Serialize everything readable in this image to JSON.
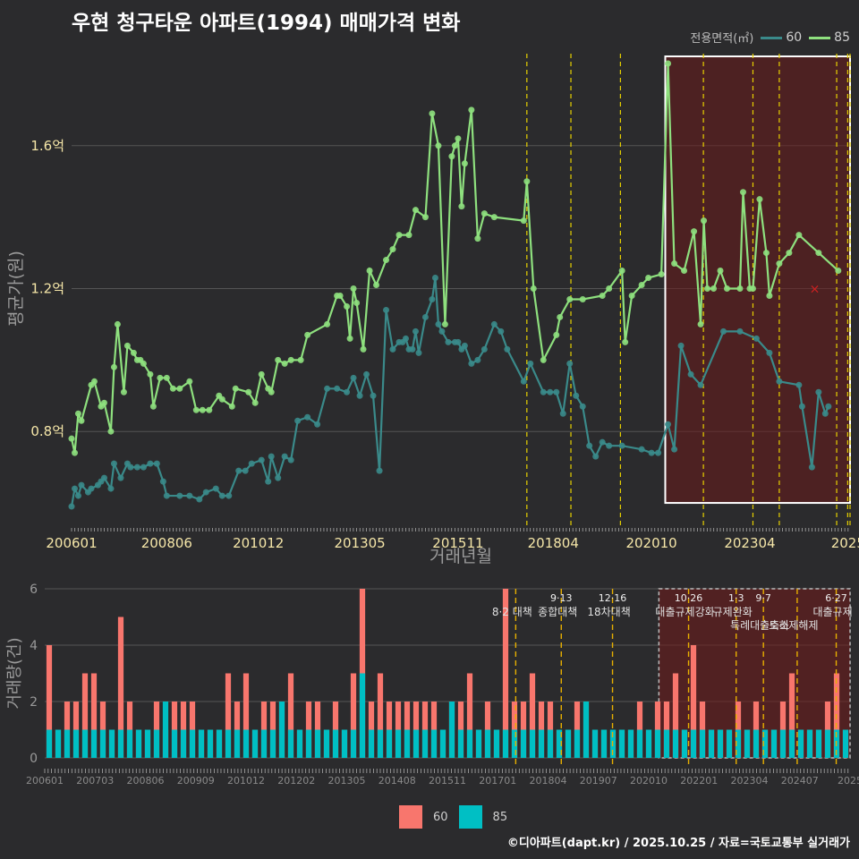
{
  "title": "우현 청구타운 아파트(1994) 매매가격 변화",
  "legend": {
    "title": "전용면적(㎡)",
    "items": [
      {
        "label": "60",
        "color": "#3a8a8a"
      },
      {
        "label": "85",
        "color": "#8ee07e"
      }
    ]
  },
  "bottom_legend": {
    "items": [
      {
        "label": "60",
        "color": "#f8766d"
      },
      {
        "label": "85",
        "color": "#00bfc4"
      }
    ]
  },
  "credit": "©디아파트(dapt.kr) / 2025.10.25 / 자료=국토교통부 실거래가",
  "chart_data": [
    {
      "type": "line",
      "title": "우현 청구타운 아파트(1994) 매매가격 변화",
      "xlabel": "거래년월",
      "ylabel": "평균가(원)",
      "xlim": [
        2006.0,
        2025.8
      ],
      "ylim": [
        0.53,
        1.87
      ],
      "yticks": [
        {
          "v": 0.8,
          "label": "0.8억"
        },
        {
          "v": 1.2,
          "label": "1.2억"
        },
        {
          "v": 1.6,
          "label": "1.6억"
        }
      ],
      "xticks": [
        {
          "v": 2006.0,
          "label": "200601"
        },
        {
          "v": 2008.42,
          "label": "200806"
        },
        {
          "v": 2010.75,
          "label": "201012"
        },
        {
          "v": 2013.33,
          "label": "201305"
        },
        {
          "v": 2015.83,
          "label": "201511"
        },
        {
          "v": 2018.25,
          "label": "201804"
        },
        {
          "v": 2020.75,
          "label": "202010"
        },
        {
          "v": 2023.25,
          "label": "202304"
        },
        {
          "v": 2025.75,
          "label": "2025"
        }
      ],
      "policy_lines": [
        2017.58,
        2018.7,
        2019.96,
        2022.07,
        2023.33,
        2024.0,
        2025.46,
        2025.74,
        2025.8
      ],
      "highlight_range": [
        2021.1,
        2025.8
      ],
      "highlight_y_range": [
        0.6,
        1.85
      ],
      "marker": {
        "x": 2024.9,
        "y": 1.2,
        "label": "×"
      },
      "series": [
        {
          "name": "85",
          "x": [
            2006.0,
            2006.08,
            2006.17,
            2006.25,
            2006.5,
            2006.58,
            2006.75,
            2006.83,
            2007.0,
            2007.08,
            2007.17,
            2007.33,
            2007.42,
            2007.58,
            2007.67,
            2007.75,
            2007.83,
            2008.0,
            2008.08,
            2008.25,
            2008.42,
            2008.58,
            2008.75,
            2009.0,
            2009.17,
            2009.33,
            2009.5,
            2009.75,
            2009.83,
            2010.08,
            2010.17,
            2010.5,
            2010.67,
            2010.83,
            2011.0,
            2011.08,
            2011.25,
            2011.42,
            2011.58,
            2011.83,
            2012.0,
            2012.5,
            2012.75,
            2012.83,
            2013.0,
            2013.08,
            2013.17,
            2013.25,
            2013.42,
            2013.58,
            2013.75,
            2014.0,
            2014.17,
            2014.33,
            2014.58,
            2014.75,
            2015.0,
            2015.17,
            2015.33,
            2015.5,
            2015.67,
            2015.75,
            2015.83,
            2015.92,
            2016.0,
            2016.17,
            2016.33,
            2016.5,
            2016.75,
            2017.5,
            2017.58,
            2017.75,
            2018.0,
            2018.33,
            2018.42,
            2018.67,
            2019.0,
            2019.5,
            2019.67,
            2020.0,
            2020.08,
            2020.25,
            2020.5,
            2020.67,
            2021.0,
            2021.17,
            2021.33,
            2021.58,
            2021.83,
            2022.0,
            2022.08,
            2022.17,
            2022.33,
            2022.5,
            2022.67,
            2023.0,
            2023.08,
            2023.25,
            2023.33,
            2023.5,
            2023.67,
            2023.75,
            2024.0,
            2024.25,
            2024.5,
            2025.0,
            2025.5
          ],
          "y": [
            0.78,
            0.74,
            0.85,
            0.83,
            0.93,
            0.94,
            0.87,
            0.88,
            0.8,
            0.98,
            1.1,
            0.91,
            1.04,
            1.02,
            1.0,
            1.0,
            0.99,
            0.96,
            0.87,
            0.95,
            0.95,
            0.92,
            0.92,
            0.94,
            0.86,
            0.86,
            0.86,
            0.9,
            0.89,
            0.87,
            0.92,
            0.91,
            0.88,
            0.96,
            0.92,
            0.91,
            1.0,
            0.99,
            1.0,
            1.0,
            1.07,
            1.1,
            1.18,
            1.18,
            1.15,
            1.06,
            1.2,
            1.16,
            1.03,
            1.25,
            1.21,
            1.28,
            1.31,
            1.35,
            1.35,
            1.42,
            1.4,
            1.69,
            1.6,
            1.1,
            1.57,
            1.6,
            1.62,
            1.43,
            1.55,
            1.7,
            1.34,
            1.41,
            1.4,
            1.39,
            1.5,
            1.2,
            1.0,
            1.07,
            1.12,
            1.17,
            1.17,
            1.18,
            1.2,
            1.25,
            1.05,
            1.18,
            1.21,
            1.23,
            1.24,
            1.83,
            1.27,
            1.25,
            1.36,
            1.1,
            1.39,
            1.2,
            1.2,
            1.25,
            1.2,
            1.2,
            1.47,
            1.2,
            1.2,
            1.45,
            1.3,
            1.18,
            1.27,
            1.3,
            1.35,
            1.3,
            1.25
          ]
        },
        {
          "name": "60",
          "x": [
            2006.0,
            2006.08,
            2006.17,
            2006.25,
            2006.42,
            2006.5,
            2006.67,
            2006.75,
            2006.83,
            2007.0,
            2007.08,
            2007.25,
            2007.42,
            2007.5,
            2007.67,
            2007.83,
            2008.0,
            2008.17,
            2008.33,
            2008.42,
            2008.75,
            2009.0,
            2009.25,
            2009.42,
            2009.67,
            2009.83,
            2010.0,
            2010.25,
            2010.42,
            2010.58,
            2010.83,
            2011.0,
            2011.08,
            2011.25,
            2011.42,
            2011.58,
            2011.75,
            2012.0,
            2012.25,
            2012.5,
            2012.75,
            2013.0,
            2013.17,
            2013.33,
            2013.5,
            2013.67,
            2013.83,
            2014.0,
            2014.17,
            2014.33,
            2014.42,
            2014.5,
            2014.58,
            2014.67,
            2014.75,
            2014.83,
            2015.0,
            2015.17,
            2015.25,
            2015.33,
            2015.42,
            2015.58,
            2015.75,
            2015.83,
            2015.92,
            2016.0,
            2016.17,
            2016.33,
            2016.5,
            2016.75,
            2016.92,
            2017.08,
            2017.5,
            2017.67,
            2018.0,
            2018.17,
            2018.33,
            2018.5,
            2018.67,
            2018.83,
            2019.0,
            2019.17,
            2019.33,
            2019.5,
            2019.67,
            2020.0,
            2020.5,
            2020.75,
            2020.92,
            2021.17,
            2021.33,
            2021.5,
            2021.75,
            2022.0,
            2022.58,
            2023.0,
            2023.42,
            2023.75,
            2024.0,
            2024.5,
            2024.58,
            2024.83,
            2025.0,
            2025.17,
            2025.25
          ],
          "y": [
            0.59,
            0.64,
            0.62,
            0.65,
            0.63,
            0.64,
            0.65,
            0.66,
            0.67,
            0.64,
            0.71,
            0.67,
            0.71,
            0.7,
            0.7,
            0.7,
            0.71,
            0.71,
            0.66,
            0.62,
            0.62,
            0.62,
            0.61,
            0.63,
            0.64,
            0.62,
            0.62,
            0.69,
            0.69,
            0.71,
            0.72,
            0.66,
            0.73,
            0.67,
            0.73,
            0.72,
            0.83,
            0.84,
            0.82,
            0.92,
            0.92,
            0.91,
            0.95,
            0.9,
            0.96,
            0.9,
            0.69,
            1.14,
            1.03,
            1.05,
            1.05,
            1.06,
            1.03,
            1.03,
            1.08,
            1.02,
            1.12,
            1.17,
            1.23,
            1.1,
            1.08,
            1.05,
            1.05,
            1.05,
            1.03,
            1.04,
            0.99,
            1.0,
            1.03,
            1.1,
            1.08,
            1.03,
            0.94,
            0.99,
            0.91,
            0.91,
            0.91,
            0.85,
            0.99,
            0.9,
            0.87,
            0.76,
            0.73,
            0.77,
            0.76,
            0.76,
            0.75,
            0.74,
            0.74,
            0.82,
            0.75,
            1.04,
            0.96,
            0.93,
            1.08,
            1.08,
            1.06,
            1.02,
            0.94,
            0.93,
            0.87,
            0.7,
            0.91,
            0.85,
            0.87
          ]
        }
      ]
    },
    {
      "type": "bar",
      "xlabel": "",
      "ylabel": "거래량(건)",
      "ylim": [
        0,
        6
      ],
      "yticks": [
        0,
        2,
        4,
        6
      ],
      "xticks": [
        "200601",
        "200703",
        "200806",
        "200909",
        "201012",
        "201202",
        "201305",
        "201408",
        "201511",
        "201701",
        "201804",
        "201907",
        "202010",
        "202201",
        "202304",
        "202407",
        "2025"
      ],
      "policy_annotations": [
        {
          "x": 2017.58,
          "label": "8·2 대책",
          "date": ""
        },
        {
          "x": 2018.7,
          "label": "종합대책",
          "date": "9·13"
        },
        {
          "x": 2019.96,
          "label": "18차대책",
          "date": "12·16"
        },
        {
          "x": 2021.83,
          "label": "대출규제강화",
          "date": "10·26"
        },
        {
          "x": 2023.0,
          "label": "규제완화",
          "date": "1·3"
        },
        {
          "x": 2023.67,
          "label": "특례대출축소",
          "date": "9·7"
        },
        {
          "x": 2024.5,
          "label": "토허제해제",
          "date": ""
        },
        {
          "x": 2025.46,
          "label": "대출규제",
          "date": "6·27"
        }
      ],
      "highlight_range": [
        2021.1,
        2025.8
      ],
      "series": [
        {
          "name": "60",
          "values": [
            4,
            1,
            2,
            2,
            3,
            3,
            2,
            1,
            5,
            2,
            1,
            1,
            2,
            1,
            2,
            2,
            2,
            1,
            1,
            1,
            3,
            2,
            3,
            1,
            2,
            2,
            2,
            3,
            1,
            2,
            2,
            1,
            2,
            1,
            3,
            6,
            2,
            3,
            2,
            2,
            2,
            2,
            2,
            2,
            1,
            2,
            2,
            3,
            1,
            2,
            1,
            6,
            2,
            2,
            3,
            2,
            2,
            1,
            1,
            2,
            2,
            1,
            1,
            1,
            1,
            1,
            2,
            1,
            2,
            2,
            3,
            1,
            4,
            2,
            1,
            1,
            1,
            2,
            1,
            2,
            1,
            1,
            2,
            3,
            1,
            1,
            1,
            2,
            3,
            1
          ]
        },
        {
          "name": "85",
          "values": [
            1,
            1,
            1,
            1,
            1,
            1,
            1,
            1,
            1,
            1,
            1,
            1,
            1,
            2,
            1,
            1,
            1,
            1,
            1,
            1,
            1,
            1,
            1,
            1,
            1,
            1,
            2,
            1,
            1,
            1,
            1,
            1,
            1,
            1,
            1,
            3,
            1,
            1,
            1,
            1,
            1,
            1,
            1,
            1,
            1,
            2,
            1,
            1,
            1,
            1,
            1,
            1,
            1,
            1,
            1,
            1,
            1,
            1,
            1,
            1,
            2,
            1,
            1,
            1,
            1,
            1,
            1,
            1,
            1,
            1,
            1,
            1,
            1,
            1,
            1,
            1,
            1,
            1,
            1,
            1,
            1,
            1,
            1,
            1,
            1,
            1,
            1,
            1,
            1,
            1
          ]
        }
      ]
    }
  ]
}
